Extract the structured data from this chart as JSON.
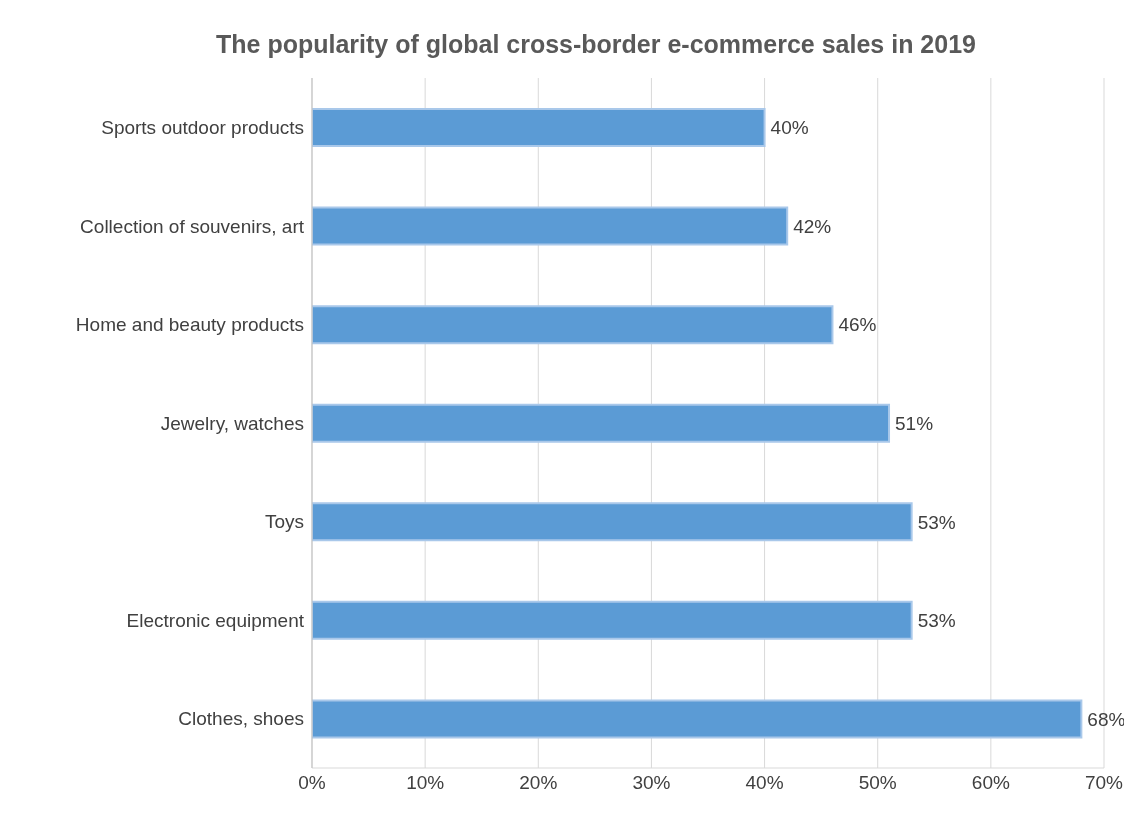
{
  "chart_data": {
    "type": "bar",
    "orientation": "horizontal",
    "title": "The popularity of global cross-border e-commerce sales in 2019",
    "categories": [
      "Sports outdoor products",
      "Collection of souvenirs, art",
      "Home and beauty products",
      "Jewelry, watches",
      "Toys",
      "Electronic equipment",
      "Clothes, shoes"
    ],
    "values": [
      40,
      42,
      46,
      51,
      53,
      53,
      68
    ],
    "value_labels": [
      "40%",
      "42%",
      "46%",
      "51%",
      "53%",
      "53%",
      "68%"
    ],
    "color": "#5b9bd5",
    "xlim": [
      0,
      70
    ],
    "xticks": [
      {
        "value": 0,
        "label": "0%"
      },
      {
        "value": 10,
        "label": "10%"
      },
      {
        "value": 20,
        "label": "20%"
      },
      {
        "value": 30,
        "label": "30%"
      },
      {
        "value": 40,
        "label": "40%"
      },
      {
        "value": 50,
        "label": "50%"
      },
      {
        "value": 60,
        "label": "60%"
      },
      {
        "value": 70,
        "label": "70%"
      }
    ],
    "grid": "x"
  }
}
